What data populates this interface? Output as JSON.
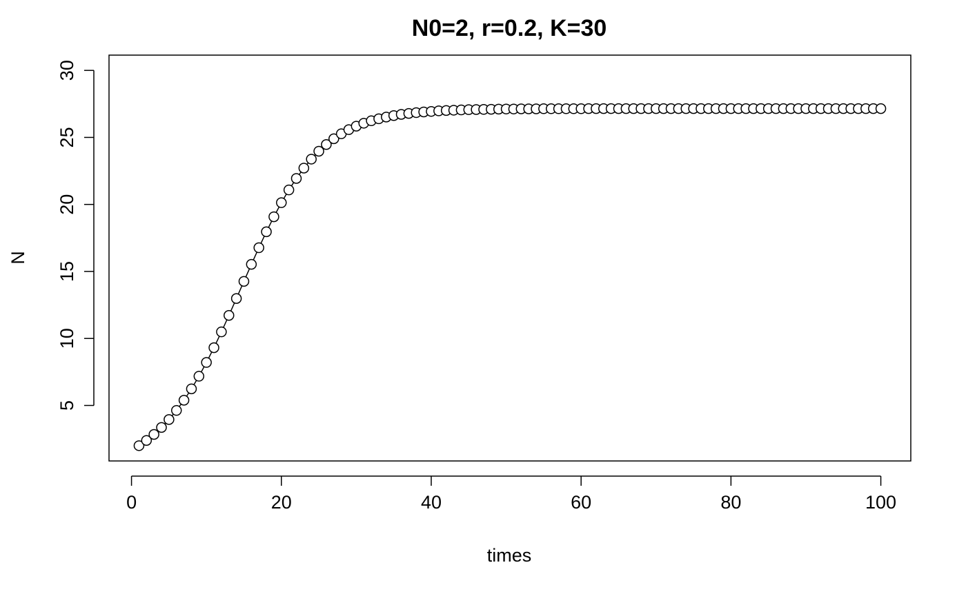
{
  "chart_data": {
    "type": "line",
    "title": "N0=2, r=0.2, K=30",
    "xlabel": "times",
    "ylabel": "N",
    "xlim": [
      -3,
      104
    ],
    "ylim": [
      0.86,
      31.14
    ],
    "xticks": [
      0,
      20,
      40,
      60,
      80,
      100
    ],
    "xtick_labels": [
      "0",
      "20",
      "40",
      "60",
      "80",
      "100"
    ],
    "yticks": [
      5,
      10,
      15,
      20,
      25,
      30
    ],
    "ytick_labels": [
      "5",
      "10",
      "15",
      "20",
      "25",
      "30"
    ],
    "grid": false,
    "legend": "none",
    "line_color": "#000000",
    "marker": "open-circle",
    "series": [
      {
        "x": [
          1,
          2,
          3,
          4,
          5,
          6,
          7,
          8,
          9,
          10,
          11,
          12,
          13,
          14,
          15,
          16,
          17,
          18,
          19,
          20,
          21,
          22,
          23,
          24,
          25,
          26,
          27,
          28,
          29,
          30,
          31,
          32,
          33,
          34,
          35,
          36,
          37,
          38,
          39,
          40,
          41,
          42,
          43,
          44,
          45,
          46,
          47,
          48,
          49,
          50,
          51,
          52,
          53,
          54,
          55,
          56,
          57,
          58,
          59,
          60,
          61,
          62,
          63,
          64,
          65,
          66,
          67,
          68,
          69,
          70,
          71,
          72,
          73,
          74,
          75,
          76,
          77,
          78,
          79,
          80,
          81,
          82,
          83,
          84,
          85,
          86,
          87,
          88,
          89,
          90,
          91,
          92,
          93,
          94,
          95,
          96,
          97,
          98,
          99,
          100
        ],
        "values": [
          2.0,
          2.39,
          2.84,
          3.36,
          3.95,
          4.63,
          5.39,
          6.24,
          7.18,
          8.21,
          9.31,
          10.49,
          11.72,
          12.98,
          14.26,
          15.53,
          16.77,
          17.96,
          19.08,
          20.13,
          21.08,
          21.94,
          22.71,
          23.38,
          23.97,
          24.47,
          24.9,
          25.27,
          25.58,
          25.84,
          26.06,
          26.24,
          26.39,
          26.52,
          26.63,
          26.72,
          26.79,
          26.85,
          26.9,
          26.94,
          26.98,
          27.01,
          27.03,
          27.05,
          27.07,
          27.08,
          27.09,
          27.1,
          27.11,
          27.12,
          27.12,
          27.13,
          27.13,
          27.13,
          27.14,
          27.14,
          27.14,
          27.14,
          27.14,
          27.14,
          27.15,
          27.15,
          27.15,
          27.15,
          27.15,
          27.15,
          27.15,
          27.15,
          27.15,
          27.15,
          27.15,
          27.15,
          27.15,
          27.15,
          27.15,
          27.15,
          27.15,
          27.15,
          27.15,
          27.15,
          27.15,
          27.15,
          27.15,
          27.15,
          27.15,
          27.15,
          27.15,
          27.15,
          27.15,
          27.15,
          27.15,
          27.15,
          27.15,
          27.15,
          27.15,
          27.15,
          27.15,
          27.15,
          27.15,
          27.15
        ]
      }
    ]
  }
}
